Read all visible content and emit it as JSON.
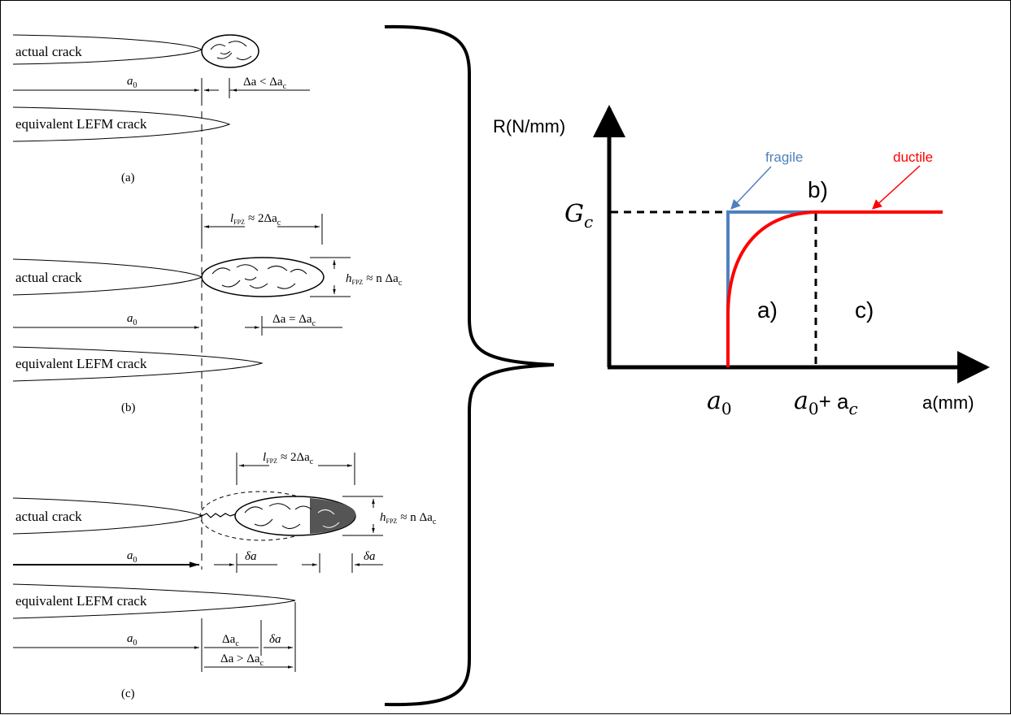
{
  "left": {
    "panel_a": {
      "actual_crack": "actual crack",
      "a0": "a",
      "a0_sub": "0",
      "delta_a": "Δa < Δa",
      "delta_a_sub": "c",
      "equivalent": "equivalent LEFM crack",
      "caption": "(a)"
    },
    "panel_b": {
      "lfpz": "l",
      "lfpz_sub": "FPZ",
      "lfpz_rest": "≈ 2Δa",
      "lfpz_rest_sub": "c",
      "actual_crack": "actual crack",
      "hfpz": "h",
      "hfpz_sub": "FPZ",
      "hfpz_rest": "≈ n Δa",
      "hfpz_rest_sub": "c",
      "a0": "a",
      "a0_sub": "0",
      "delta_a": "Δa = Δa",
      "delta_a_sub": "c",
      "equivalent": "equivalent LEFM crack",
      "caption": "(b)"
    },
    "panel_c": {
      "lfpz": "l",
      "lfpz_sub": "FPZ",
      "lfpz_rest": "≈ 2Δa",
      "lfpz_rest_sub": "c",
      "actual_crack": "actual crack",
      "hfpz": "h",
      "hfpz_sub": "FPZ",
      "hfpz_rest": "≈ n Δa",
      "hfpz_rest_sub": "c",
      "a0": "a",
      "a0_sub": "0",
      "delta_a_1": "δa",
      "delta_a_2": "δa",
      "equivalent": "equivalent LEFM crack",
      "a0_b": "a",
      "a0_b_sub": "0",
      "dac": "Δa",
      "dac_sub": "c",
      "delta_a_3": "δa",
      "da_gt": "Δa > Δa",
      "da_gt_sub": "c",
      "caption": "(c)"
    }
  },
  "chart_data": {
    "type": "line",
    "ylabel": "R(N/mm)",
    "xlabel": "a(mm)",
    "y_tick_label": "G",
    "y_tick_sub": "c",
    "x_tick_1": "a",
    "x_tick_1_sub": "0",
    "x_tick_2": "a",
    "x_tick_2_sub": "0",
    "x_tick_2_plus": "+ a",
    "x_tick_2_plus_sub": "c",
    "region_a": "a)",
    "region_b": "b)",
    "region_c": "c)",
    "series": [
      {
        "name": "fragile",
        "color": "#4f81bd"
      },
      {
        "name": "ductile",
        "color": "#ff0000"
      }
    ]
  }
}
